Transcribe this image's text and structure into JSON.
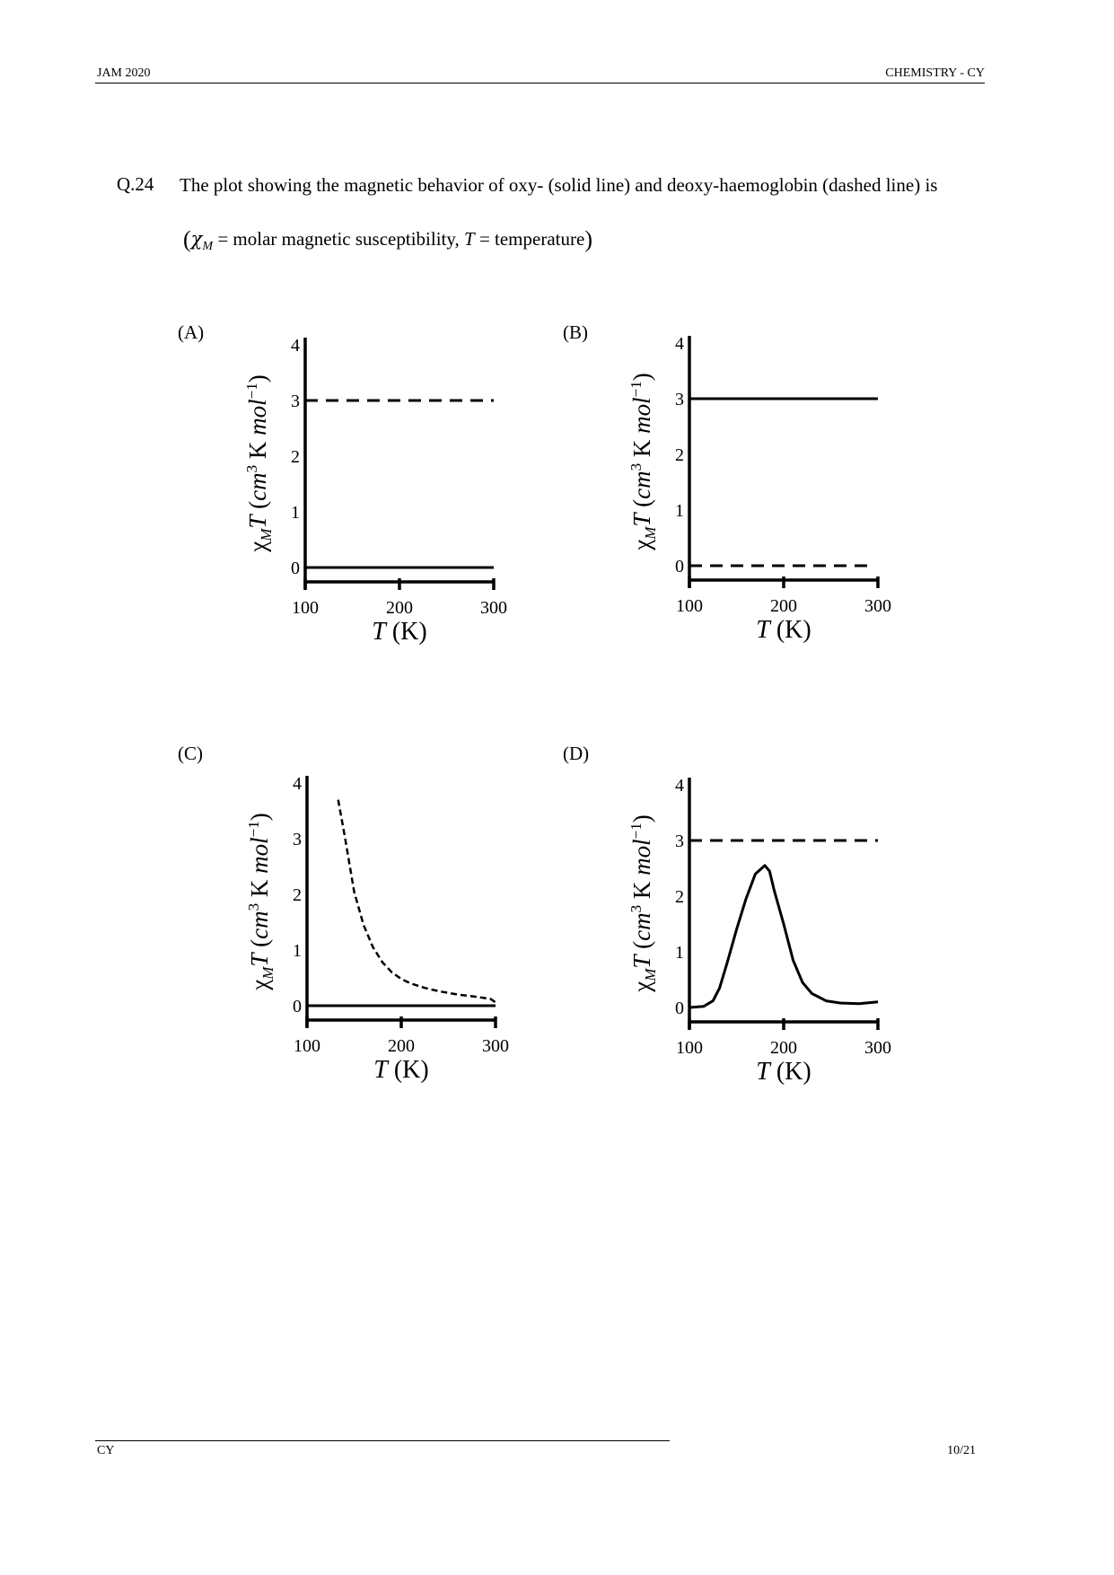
{
  "header": {
    "left": "JAM 2020",
    "right": "CHEMISTRY - CY"
  },
  "question": {
    "number": "Q.24",
    "text": "The plot showing the magnetic behavior of oxy- (solid line) and deoxy-haemoglobin (dashed line) is",
    "definition": {
      "chi_symbol": "χ",
      "chi_subscript": "M",
      "chi_desc": " = molar magnetic susceptibility, ",
      "temp_symbol": "T",
      "temp_desc": " = temperature"
    }
  },
  "plot_text": {
    "ylabel": "χMT (cm3 K mol−1)",
    "ylabel_parts": {
      "chi": "χ",
      "sub": "M",
      "T": "T",
      "open": " (",
      "cm": "cm",
      "sup3": "3",
      "K": " K ",
      "mol": "mol",
      "supm1": "−1",
      "close": ")"
    },
    "xlabel": "T (K)",
    "xlabel_parts": {
      "T": "T",
      "unit": " (K)"
    }
  },
  "chart_data": [
    {
      "option": "(A)",
      "type": "line",
      "xlabel": "T (K)",
      "ylabel": "χMT (cm3 K mol−1)",
      "xlim": [
        100,
        300
      ],
      "ylim": [
        0,
        4
      ],
      "xticks": [
        "100",
        "200",
        "300"
      ],
      "yticks": [
        "0",
        "1",
        "2",
        "3",
        "4"
      ],
      "series": [
        {
          "name": "oxy-haemoglobin",
          "style": "solid",
          "x": [
            100,
            300
          ],
          "y": [
            0,
            0
          ]
        },
        {
          "name": "deoxy-haemoglobin",
          "style": "dashed",
          "x": [
            100,
            300
          ],
          "y": [
            3,
            3
          ]
        }
      ]
    },
    {
      "option": "(B)",
      "type": "line",
      "xlabel": "T (K)",
      "ylabel": "χMT (cm3 K mol−1)",
      "xlim": [
        100,
        300
      ],
      "ylim": [
        0,
        4
      ],
      "xticks": [
        "100",
        "200",
        "300"
      ],
      "yticks": [
        "0",
        "1",
        "2",
        "3",
        "4"
      ],
      "series": [
        {
          "name": "oxy-haemoglobin",
          "style": "solid",
          "x": [
            100,
            300
          ],
          "y": [
            3,
            3
          ]
        },
        {
          "name": "deoxy-haemoglobin",
          "style": "dashed",
          "x": [
            100,
            290
          ],
          "y": [
            0,
            0
          ]
        }
      ]
    },
    {
      "option": "(C)",
      "type": "line",
      "xlabel": "T (K)",
      "ylabel": "χMT (cm3 K mol−1)",
      "xlim": [
        100,
        300
      ],
      "ylim": [
        0,
        4
      ],
      "xticks": [
        "100",
        "200",
        "300"
      ],
      "yticks": [
        "0",
        "1",
        "2",
        "3",
        "4"
      ],
      "series": [
        {
          "name": "oxy-haemoglobin",
          "style": "solid",
          "x": [
            100,
            300
          ],
          "y": [
            0,
            0
          ]
        },
        {
          "name": "deoxy-haemoglobin",
          "style": "dashed",
          "x": [
            133,
            140,
            150,
            160,
            170,
            180,
            190,
            200,
            210,
            225,
            240,
            260,
            280,
            295,
            300
          ],
          "y": [
            3.7,
            3.05,
            2.05,
            1.45,
            1.05,
            0.78,
            0.6,
            0.48,
            0.4,
            0.32,
            0.26,
            0.2,
            0.16,
            0.12,
            0.06
          ]
        }
      ]
    },
    {
      "option": "(D)",
      "type": "line",
      "xlabel": "T (K)",
      "ylabel": "χMT (cm3 K mol−1)",
      "xlim": [
        100,
        300
      ],
      "ylim": [
        0,
        4
      ],
      "xticks": [
        "100",
        "200",
        "300"
      ],
      "yticks": [
        "0",
        "1",
        "2",
        "3",
        "4"
      ],
      "series": [
        {
          "name": "oxy-haemoglobin",
          "style": "solid",
          "x": [
            100,
            115,
            125,
            132,
            140,
            150,
            160,
            170,
            180,
            185,
            190,
            200,
            210,
            220,
            230,
            245,
            260,
            280,
            300
          ],
          "y": [
            0,
            0.02,
            0.12,
            0.35,
            0.8,
            1.4,
            1.95,
            2.4,
            2.55,
            2.45,
            2.1,
            1.5,
            0.85,
            0.45,
            0.25,
            0.12,
            0.08,
            0.07,
            0.1
          ]
        },
        {
          "name": "deoxy-haemoglobin",
          "style": "dashed",
          "x": [
            100,
            300
          ],
          "y": [
            3,
            3
          ]
        }
      ]
    }
  ],
  "footer": {
    "left": "CY",
    "right": "10/21"
  }
}
